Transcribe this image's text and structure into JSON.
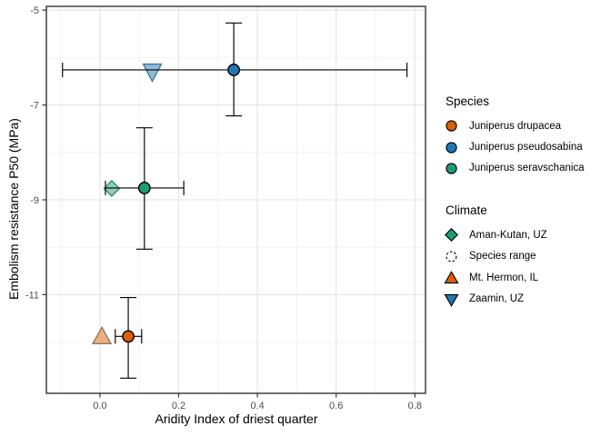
{
  "chart_data": {
    "type": "scatter",
    "title": "",
    "xlabel": "Aridity Index of driest quarter",
    "ylabel": "Embolism resistance P50 (MPa)",
    "xlim": [
      -0.136,
      0.827
    ],
    "ylim": [
      -13.08,
      -4.92
    ],
    "x_ticks": [
      0.0,
      0.2,
      0.4,
      0.6,
      0.8
    ],
    "x_tick_labels": [
      "0.0",
      "0.2",
      "0.4",
      "0.6",
      "0.8"
    ],
    "y_ticks": [
      -5,
      -7,
      -9,
      -11
    ],
    "y_tick_labels": [
      "-5",
      "-7",
      "-9",
      "-11"
    ],
    "x_minor_ticks": [
      -0.1,
      0.1,
      0.3,
      0.5,
      0.7
    ],
    "y_minor_ticks": [
      -6,
      -8,
      -10,
      -12
    ],
    "grid": true,
    "legend_position": "right",
    "series": [
      {
        "name": "Juniperus pseudosabina",
        "kind": "species-range",
        "marker": "circle",
        "fill": "#1F78B4",
        "stroke": "#000000",
        "x": 0.34,
        "y": -6.26,
        "x_range": [
          -0.095,
          0.78
        ],
        "y_range": [
          -5.27,
          -7.23
        ]
      },
      {
        "name": "Juniperus seravschanica",
        "kind": "species-range",
        "marker": "circle",
        "fill": "#1B9E77",
        "stroke": "#000000",
        "x": 0.113,
        "y": -8.75,
        "x_range": [
          0.014,
          0.213
        ],
        "y_range": [
          -7.48,
          -10.04
        ]
      },
      {
        "name": "Juniperus drupacea",
        "kind": "species-range",
        "marker": "circle",
        "fill": "#D95F02",
        "stroke": "#000000",
        "x": 0.072,
        "y": -11.88,
        "x_range": [
          0.039,
          0.106
        ],
        "y_range": [
          -11.06,
          -12.76
        ]
      }
    ],
    "site_points": [
      {
        "name": "Zaamin, UZ",
        "species": "Juniperus pseudosabina",
        "marker": "triangle-down",
        "fill": "#8FBBD9",
        "stroke": "#44749C",
        "x": 0.133,
        "y": -6.3
      },
      {
        "name": "Aman-Kutan, UZ",
        "species": "Juniperus seravschanica",
        "marker": "diamond",
        "fill": "#8DCEBB",
        "stroke": "#2E8872",
        "x": 0.03,
        "y": -8.76
      },
      {
        "name": "Mt. Hermon, IL",
        "species": "Juniperus drupacea",
        "marker": "triangle-up",
        "fill": "#ECAF80",
        "stroke": "#8A7260",
        "x": 0.005,
        "y": -11.88
      }
    ]
  },
  "legend": {
    "species": {
      "title": "Species",
      "items": [
        {
          "label": "Juniperus drupacea",
          "marker": "circle",
          "fill": "#D95F02",
          "stroke": "#000000"
        },
        {
          "label": "Juniperus pseudosabina",
          "marker": "circle",
          "fill": "#1F78B4",
          "stroke": "#000000"
        },
        {
          "label": "Juniperus seravschanica",
          "marker": "circle",
          "fill": "#1B9E77",
          "stroke": "#000000"
        }
      ]
    },
    "climate": {
      "title": "Climate",
      "items": [
        {
          "label": "Aman-Kutan, UZ",
          "marker": "diamond",
          "fill": "#1B9E77",
          "stroke": "#000000"
        },
        {
          "label": "Species range",
          "marker": "circle-dashed",
          "fill": "#FFFFFF",
          "stroke": "#000000"
        },
        {
          "label": "Mt. Hermon, IL",
          "marker": "triangle-up",
          "fill": "#D95F02",
          "stroke": "#000000"
        },
        {
          "label": "Zaamin, UZ",
          "marker": "triangle-down",
          "fill": "#1F78B4",
          "stroke": "#000000"
        }
      ]
    }
  },
  "style": {
    "panel_border": "#333333",
    "grid_major": "#E3E3E3",
    "grid_minor": "#F2F2F2",
    "tick_color": "#333333",
    "tick_label_color": "#4D4D4D",
    "error_bar_color": "#000000",
    "background": "#FFFFFF"
  }
}
